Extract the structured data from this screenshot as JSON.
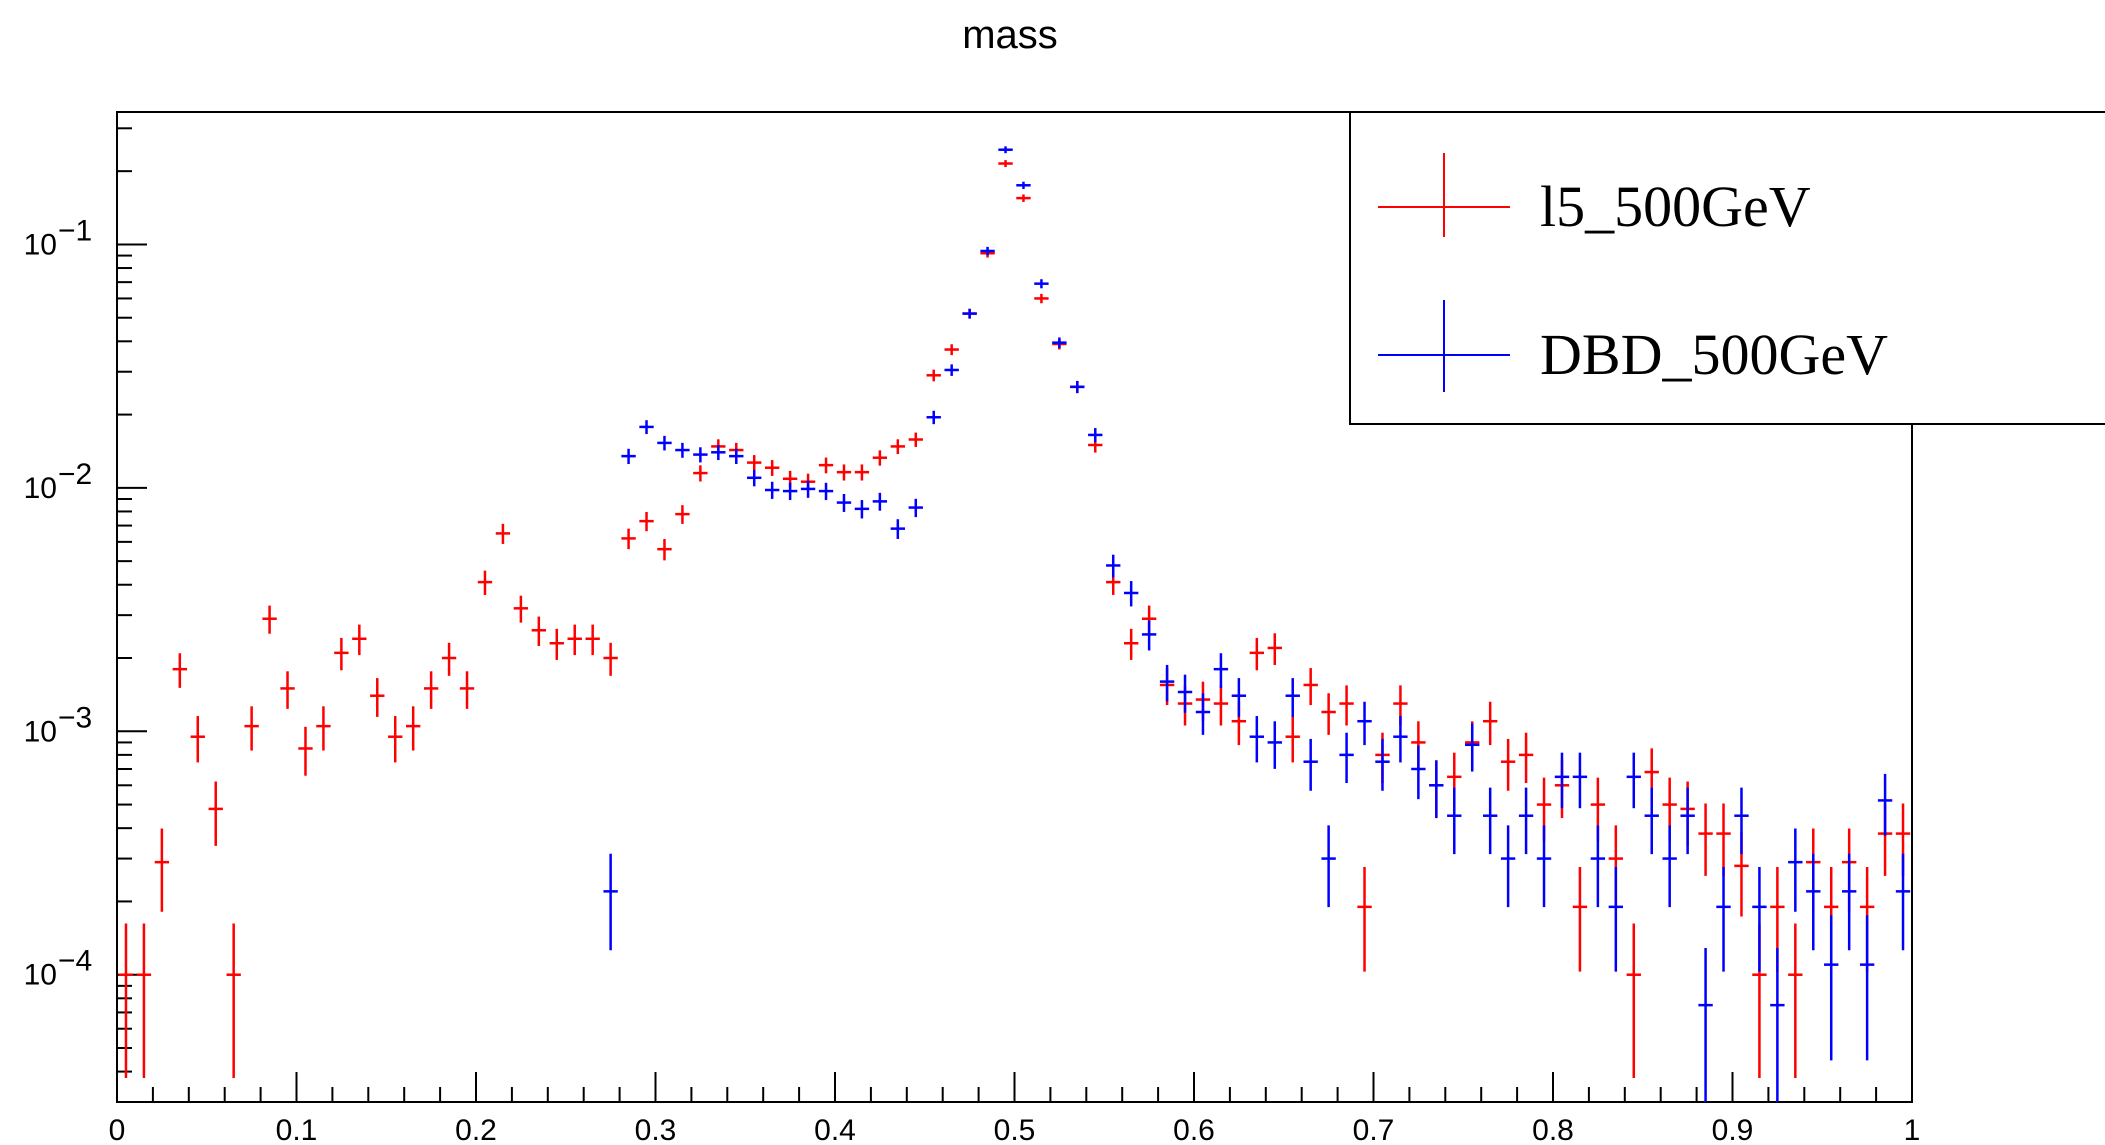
{
  "chart_data": {
    "type": "scatter",
    "title": "mass",
    "xlabel": "",
    "ylabel": "",
    "xlim": [
      0,
      1
    ],
    "ylim": [
      3e-05,
      0.35
    ],
    "log_y": true,
    "bin_width": 0.01,
    "x_ticks": [
      {
        "value": 0,
        "label": "0"
      },
      {
        "value": 0.1,
        "label": "0.1"
      },
      {
        "value": 0.2,
        "label": "0.2"
      },
      {
        "value": 0.3,
        "label": "0.3"
      },
      {
        "value": 0.4,
        "label": "0.4"
      },
      {
        "value": 0.5,
        "label": "0.5"
      },
      {
        "value": 0.6,
        "label": "0.6"
      },
      {
        "value": 0.7,
        "label": "0.7"
      },
      {
        "value": 0.8,
        "label": "0.8"
      },
      {
        "value": 0.9,
        "label": "0.9"
      },
      {
        "value": 1,
        "label": "1"
      }
    ],
    "y_ticks": [
      {
        "value": 0.1,
        "base": "10",
        "exp": "−1"
      },
      {
        "value": 0.01,
        "base": "10",
        "exp": "−2"
      },
      {
        "value": 0.001,
        "base": "10",
        "exp": "−3"
      },
      {
        "value": 0.0001,
        "base": "10",
        "exp": "−4"
      }
    ],
    "legend_position": "top-right",
    "series": [
      {
        "name": "l5_500GeV",
        "color": "#ff0000",
        "points": [
          [
            0.005,
            0.0001
          ],
          [
            0.015,
            0.0001
          ],
          [
            0.025,
            0.00029
          ],
          [
            0.035,
            0.0018
          ],
          [
            0.045,
            0.00095
          ],
          [
            0.055,
            0.00048
          ],
          [
            0.065,
            0.0001
          ],
          [
            0.075,
            0.00105
          ],
          [
            0.085,
            0.0029
          ],
          [
            0.095,
            0.0015
          ],
          [
            0.105,
            0.00085
          ],
          [
            0.115,
            0.00105
          ],
          [
            0.125,
            0.0021
          ],
          [
            0.135,
            0.0024
          ],
          [
            0.145,
            0.0014
          ],
          [
            0.155,
            0.00095
          ],
          [
            0.165,
            0.00105
          ],
          [
            0.175,
            0.0015
          ],
          [
            0.185,
            0.002
          ],
          [
            0.195,
            0.0015
          ],
          [
            0.205,
            0.0041
          ],
          [
            0.215,
            0.0065
          ],
          [
            0.225,
            0.0032
          ],
          [
            0.235,
            0.0026
          ],
          [
            0.245,
            0.0023
          ],
          [
            0.255,
            0.0024
          ],
          [
            0.265,
            0.0024
          ],
          [
            0.275,
            0.002
          ],
          [
            0.285,
            0.0062
          ],
          [
            0.295,
            0.0073
          ],
          [
            0.305,
            0.0056
          ],
          [
            0.315,
            0.0078
          ],
          [
            0.325,
            0.0115
          ],
          [
            0.335,
            0.0148
          ],
          [
            0.345,
            0.0143
          ],
          [
            0.355,
            0.0127
          ],
          [
            0.365,
            0.0121
          ],
          [
            0.375,
            0.0109
          ],
          [
            0.385,
            0.0106
          ],
          [
            0.395,
            0.0124
          ],
          [
            0.405,
            0.0116
          ],
          [
            0.415,
            0.0116
          ],
          [
            0.425,
            0.0133
          ],
          [
            0.435,
            0.0148
          ],
          [
            0.445,
            0.0158
          ],
          [
            0.455,
            0.029
          ],
          [
            0.465,
            0.037
          ],
          [
            0.475,
            0.052
          ],
          [
            0.485,
            0.092
          ],
          [
            0.495,
            0.215
          ],
          [
            0.505,
            0.155
          ],
          [
            0.515,
            0.06
          ],
          [
            0.525,
            0.039
          ],
          [
            0.535,
            0.026
          ],
          [
            0.545,
            0.015
          ],
          [
            0.555,
            0.0041
          ],
          [
            0.565,
            0.0023
          ],
          [
            0.575,
            0.0029
          ],
          [
            0.585,
            0.00155
          ],
          [
            0.595,
            0.0013
          ],
          [
            0.605,
            0.00135
          ],
          [
            0.615,
            0.0013
          ],
          [
            0.625,
            0.0011
          ],
          [
            0.635,
            0.0021
          ],
          [
            0.645,
            0.0022
          ],
          [
            0.655,
            0.00095
          ],
          [
            0.665,
            0.00155
          ],
          [
            0.675,
            0.0012
          ],
          [
            0.685,
            0.0013
          ],
          [
            0.695,
            0.00019
          ],
          [
            0.705,
            0.0008
          ],
          [
            0.715,
            0.0013
          ],
          [
            0.725,
            0.0009
          ],
          [
            0.735,
            0.0006
          ],
          [
            0.745,
            0.00065
          ],
          [
            0.755,
            0.0009
          ],
          [
            0.765,
            0.0011
          ],
          [
            0.775,
            0.00075
          ],
          [
            0.785,
            0.0008
          ],
          [
            0.795,
            0.0005
          ],
          [
            0.805,
            0.0006
          ],
          [
            0.815,
            0.00019
          ],
          [
            0.825,
            0.0005
          ],
          [
            0.835,
            0.0003
          ],
          [
            0.845,
            0.0001
          ],
          [
            0.855,
            0.00068
          ],
          [
            0.865,
            0.0005
          ],
          [
            0.875,
            0.00048
          ],
          [
            0.885,
            0.00038
          ],
          [
            0.895,
            0.00038
          ],
          [
            0.905,
            0.00028
          ],
          [
            0.915,
            0.0001
          ],
          [
            0.925,
            0.00019
          ],
          [
            0.935,
            0.0001
          ],
          [
            0.945,
            0.00029
          ],
          [
            0.955,
            0.00019
          ],
          [
            0.965,
            0.00029
          ],
          [
            0.975,
            0.00019
          ],
          [
            0.985,
            0.00038
          ],
          [
            0.995,
            0.00038
          ]
        ]
      },
      {
        "name": "DBD_500GeV",
        "color": "#0000ff",
        "points": [
          [
            0.275,
            0.00022
          ],
          [
            0.285,
            0.0135
          ],
          [
            0.295,
            0.0178
          ],
          [
            0.305,
            0.0153
          ],
          [
            0.315,
            0.0143
          ],
          [
            0.325,
            0.0137
          ],
          [
            0.335,
            0.014
          ],
          [
            0.345,
            0.0135
          ],
          [
            0.355,
            0.011
          ],
          [
            0.365,
            0.0098
          ],
          [
            0.375,
            0.0097
          ],
          [
            0.385,
            0.0099
          ],
          [
            0.395,
            0.0097
          ],
          [
            0.405,
            0.0087
          ],
          [
            0.415,
            0.0082
          ],
          [
            0.425,
            0.0088
          ],
          [
            0.435,
            0.0068
          ],
          [
            0.445,
            0.0083
          ],
          [
            0.455,
            0.0195
          ],
          [
            0.465,
            0.0305
          ],
          [
            0.475,
            0.052
          ],
          [
            0.485,
            0.094
          ],
          [
            0.495,
            0.245
          ],
          [
            0.505,
            0.175
          ],
          [
            0.515,
            0.069
          ],
          [
            0.525,
            0.0395
          ],
          [
            0.535,
            0.026
          ],
          [
            0.545,
            0.0165
          ],
          [
            0.555,
            0.0048
          ],
          [
            0.565,
            0.0037
          ],
          [
            0.575,
            0.0025
          ],
          [
            0.585,
            0.0016
          ],
          [
            0.595,
            0.00145
          ],
          [
            0.605,
            0.0012
          ],
          [
            0.615,
            0.0018
          ],
          [
            0.625,
            0.0014
          ],
          [
            0.635,
            0.00095
          ],
          [
            0.645,
            0.0009
          ],
          [
            0.655,
            0.0014
          ],
          [
            0.665,
            0.00075
          ],
          [
            0.675,
            0.0003
          ],
          [
            0.685,
            0.0008
          ],
          [
            0.695,
            0.0011
          ],
          [
            0.705,
            0.00075
          ],
          [
            0.715,
            0.00095
          ],
          [
            0.725,
            0.0007
          ],
          [
            0.735,
            0.0006
          ],
          [
            0.745,
            0.00045
          ],
          [
            0.755,
            0.00088
          ],
          [
            0.765,
            0.00045
          ],
          [
            0.775,
            0.0003
          ],
          [
            0.785,
            0.00045
          ],
          [
            0.795,
            0.0003
          ],
          [
            0.805,
            0.00065
          ],
          [
            0.815,
            0.00065
          ],
          [
            0.825,
            0.0003
          ],
          [
            0.835,
            0.00019
          ],
          [
            0.845,
            0.00065
          ],
          [
            0.855,
            0.00045
          ],
          [
            0.865,
            0.0003
          ],
          [
            0.875,
            0.00045
          ],
          [
            0.885,
            7.5e-05
          ],
          [
            0.895,
            0.00019
          ],
          [
            0.905,
            0.00045
          ],
          [
            0.915,
            0.00019
          ],
          [
            0.925,
            7.5e-05
          ],
          [
            0.935,
            0.00029
          ],
          [
            0.945,
            0.00022
          ],
          [
            0.955,
            0.00011
          ],
          [
            0.965,
            0.00022
          ],
          [
            0.975,
            0.00011
          ],
          [
            0.985,
            0.00052
          ],
          [
            0.995,
            0.00022
          ]
        ]
      }
    ]
  }
}
